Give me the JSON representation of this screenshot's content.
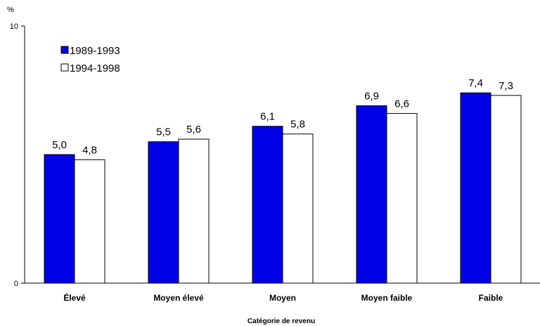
{
  "chart_data": {
    "type": "bar",
    "unit_label": "%",
    "xlabel": "Catégorie de revenu",
    "ylabel": "",
    "ylim": [
      0,
      10
    ],
    "yticks": [
      "0",
      "10"
    ],
    "categories": [
      "Élevé",
      "Moyen élevé",
      "Moyen",
      "Moyen faible",
      "Faible"
    ],
    "series": [
      {
        "name": "1989-1993",
        "color": "#0000e6",
        "values": [
          5.0,
          5.5,
          6.1,
          6.9,
          7.4
        ],
        "labels": [
          "5,0",
          "5,5",
          "6,1",
          "6,9",
          "7,4"
        ]
      },
      {
        "name": "1994-1998",
        "color": "#ffffff",
        "values": [
          4.8,
          5.6,
          5.8,
          6.6,
          7.3
        ],
        "labels": [
          "4,8",
          "5,6",
          "5,8",
          "6,6",
          "7,3"
        ]
      }
    ],
    "legend_position": "top-left",
    "grid": false
  }
}
